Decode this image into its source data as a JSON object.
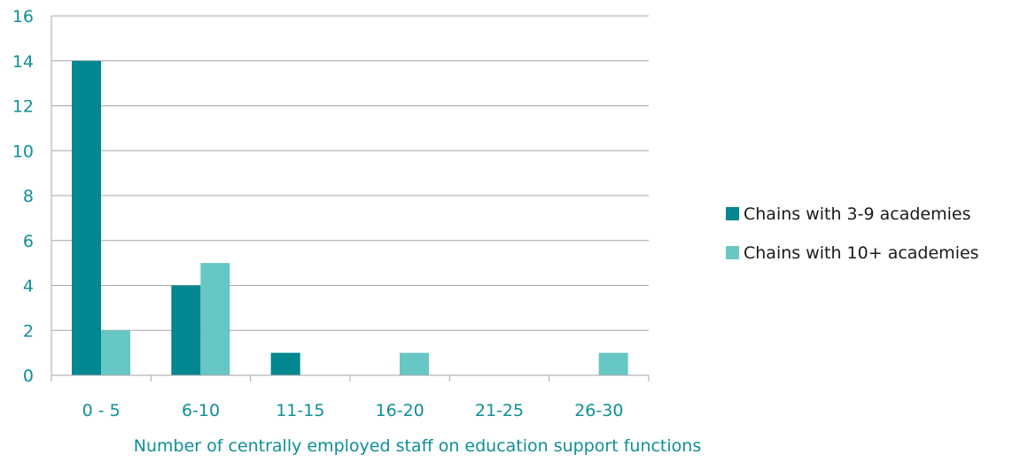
{
  "colors": {
    "series_1": "#00878f",
    "series_2": "#67c7c4",
    "axis_text": "#0f8f97",
    "legend_text": "#1a1a1a",
    "gridline": "#a6a6a6",
    "axis_line": "#a6a6a6"
  },
  "chart_data": {
    "type": "bar",
    "title": "",
    "xlabel": "Number of centrally employed staff on education support functions",
    "ylabel": "",
    "categories": [
      "0 - 5",
      "6-10",
      "11-15",
      "16-20",
      "21-25",
      "26-30"
    ],
    "series": [
      {
        "name": "Chains with 3-9 academies",
        "values": [
          14,
          4,
          1,
          0,
          0,
          0
        ]
      },
      {
        "name": "Chains with 10+ academies",
        "values": [
          2,
          5,
          0,
          1,
          0,
          1
        ]
      }
    ],
    "ylim": [
      0,
      16
    ],
    "yticks": [
      "0",
      "2",
      "4",
      "6",
      "8",
      "10",
      "12",
      "14",
      "16"
    ],
    "grid": true,
    "legend_position": "right"
  }
}
